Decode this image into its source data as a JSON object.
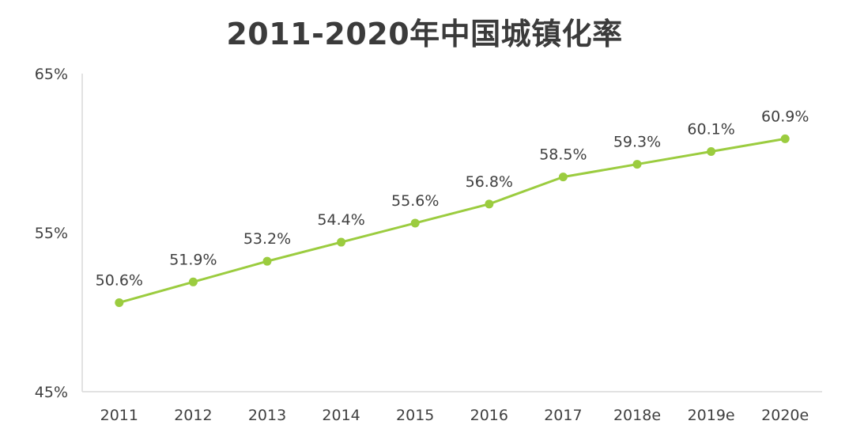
{
  "chart_data": {
    "type": "line",
    "title": "2011-2020年中国城镇化率",
    "categories": [
      "2011",
      "2012",
      "2013",
      "2014",
      "2015",
      "2016",
      "2017",
      "2018e",
      "2019e",
      "2020e"
    ],
    "series": [
      {
        "values": [
          50.6,
          51.9,
          53.2,
          54.4,
          55.6,
          56.8,
          58.5,
          59.3,
          60.1,
          60.9
        ],
        "labels": [
          "50.6%",
          "51.9%",
          "53.2%",
          "54.4%",
          "55.6%",
          "56.8%",
          "58.5%",
          "59.3%",
          "60.1%",
          "60.9%"
        ]
      }
    ],
    "yticks": [
      45,
      55,
      65
    ],
    "ytick_labels": [
      "45%",
      "55%",
      "65%"
    ],
    "ylim": [
      45,
      65
    ],
    "grid": false,
    "legend": "none",
    "colors": {
      "line": "#9bcc3f",
      "axis": "#d9d9d9",
      "text": "#404040",
      "title": "#3b3b3b"
    }
  }
}
